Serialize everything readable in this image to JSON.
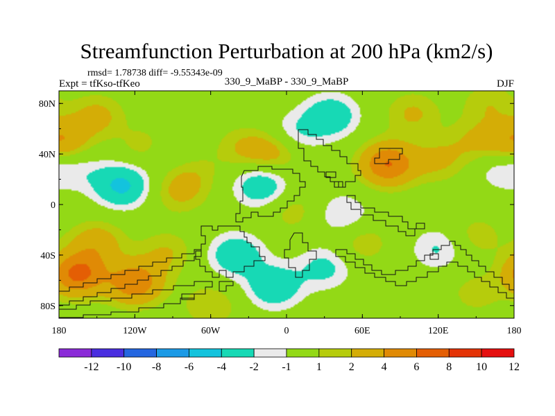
{
  "chart_data": {
    "type": "contour-map",
    "title": "Streamfunction Perturbation at 200 hPa (km2/s)",
    "stats_text": "rmsd= 1.78738 diff= -9.55343e-09",
    "left_label": "Expt = tfKso-tfKeo",
    "center_label": "330_9_MaBP - 330_9_MaBP",
    "right_label": "DJF",
    "x_range": [
      -180,
      180
    ],
    "y_range": [
      -90,
      90
    ],
    "x_ticks": [
      {
        "value": -180,
        "label": "180"
      },
      {
        "value": -120,
        "label": "120W"
      },
      {
        "value": -60,
        "label": "60W"
      },
      {
        "value": 0,
        "label": "0"
      },
      {
        "value": 60,
        "label": "60E"
      },
      {
        "value": 120,
        "label": "120E"
      },
      {
        "value": 180,
        "label": "180"
      }
    ],
    "y_ticks": [
      {
        "value": 80,
        "label": "80N"
      },
      {
        "value": 40,
        "label": "40N"
      },
      {
        "value": 0,
        "label": "0"
      },
      {
        "value": -40,
        "label": "40S"
      },
      {
        "value": -80,
        "label": "80S"
      }
    ],
    "colorbar": {
      "colors": [
        "#8b2bd8",
        "#4a2ee0",
        "#2466e0",
        "#1b9ae6",
        "#13c3dd",
        "#17d9b5",
        "#eaeaea",
        "#93d916",
        "#b6cc0c",
        "#d4ad06",
        "#e08a05",
        "#e45e04",
        "#e43306",
        "#e50f0f"
      ],
      "levels": [
        -12,
        -10,
        -8,
        -6,
        -4,
        -2,
        -1,
        1,
        2,
        4,
        6,
        8,
        10,
        12
      ],
      "labels": [
        "-12",
        "-10",
        "-8",
        "-6",
        "-4",
        "-2",
        "-1",
        "1",
        "2",
        "4",
        "6",
        "8",
        "10",
        "12"
      ]
    },
    "anomalies": [
      {
        "lon": -165,
        "lat": -55,
        "value": 6.5
      },
      {
        "lon": -120,
        "lat": -62,
        "value": 5.5
      },
      {
        "lon": -150,
        "lat": -30,
        "value": 3
      },
      {
        "lon": -95,
        "lat": -38,
        "value": 2
      },
      {
        "lon": -150,
        "lat": 70,
        "value": 2.5
      },
      {
        "lon": -178,
        "lat": 50,
        "value": 4
      },
      {
        "lon": -110,
        "lat": 45,
        "value": 2
      },
      {
        "lon": -95,
        "lat": 40,
        "value": -1.5
      },
      {
        "lon": -130,
        "lat": 15,
        "value": -4.5
      },
      {
        "lon": -165,
        "lat": 28,
        "value": -1.5
      },
      {
        "lon": -85,
        "lat": 10,
        "value": 2.2
      },
      {
        "lon": -75,
        "lat": 25,
        "value": 1.5
      },
      {
        "lon": -20,
        "lat": 15,
        "value": -3.5
      },
      {
        "lon": 5,
        "lat": 55,
        "value": -2.2
      },
      {
        "lon": 35,
        "lat": 70,
        "value": -3.5
      },
      {
        "lon": -35,
        "lat": 45,
        "value": 1.8
      },
      {
        "lon": -10,
        "lat": 42,
        "value": 3
      },
      {
        "lon": 80,
        "lat": 32,
        "value": 6
      },
      {
        "lon": 120,
        "lat": 35,
        "value": 2.2
      },
      {
        "lon": 150,
        "lat": 50,
        "value": 2
      },
      {
        "lon": 170,
        "lat": 28,
        "value": -1.8
      },
      {
        "lon": 100,
        "lat": 72,
        "value": 2.2
      },
      {
        "lon": 160,
        "lat": 80,
        "value": 1.8
      },
      {
        "lon": 5,
        "lat": -5,
        "value": 1.6
      },
      {
        "lon": 45,
        "lat": -8,
        "value": -2.2
      },
      {
        "lon": -40,
        "lat": -40,
        "value": -3.5
      },
      {
        "lon": -10,
        "lat": -65,
        "value": -3.6
      },
      {
        "lon": 30,
        "lat": -50,
        "value": -2.5
      },
      {
        "lon": 60,
        "lat": -30,
        "value": 1.8
      },
      {
        "lon": 120,
        "lat": -35,
        "value": -2.2
      },
      {
        "lon": 150,
        "lat": -25,
        "value": 1.6
      },
      {
        "lon": 150,
        "lat": -70,
        "value": 1.5
      },
      {
        "lon": -60,
        "lat": -80,
        "value": 2
      }
    ]
  }
}
